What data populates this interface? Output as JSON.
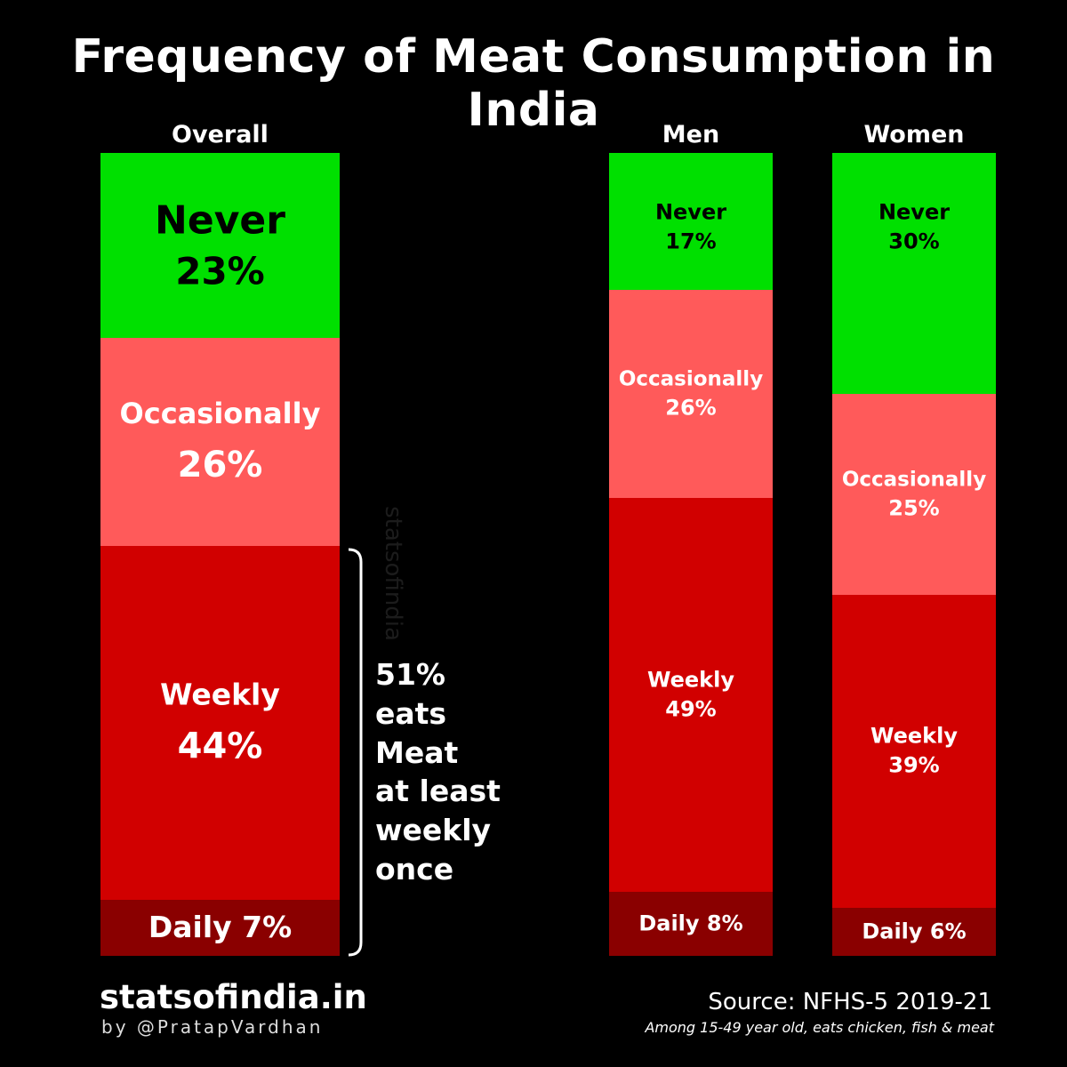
{
  "title": "Frequency of Meat Consumption in India",
  "colors": {
    "never": "#00e000",
    "occasionally": "#ff5a5a",
    "weekly": "#d10000",
    "daily": "#8a0000",
    "never_text": "#000000",
    "occasionally_text": "#ffffff",
    "weekly_text": "#ffffff",
    "daily_text": "#ffffff"
  },
  "chart_data": {
    "type": "bar",
    "stacked": true,
    "orientation": "vertical",
    "normalized": true,
    "categories": [
      "Overall",
      "Men",
      "Women"
    ],
    "series": [
      {
        "name": "Never",
        "values": [
          23,
          17,
          30
        ],
        "labels": [
          "23%",
          "17%",
          "30%"
        ]
      },
      {
        "name": "Occasionally",
        "values": [
          26,
          26,
          25
        ],
        "labels": [
          "26%",
          "26%",
          "25%"
        ]
      },
      {
        "name": "Weekly",
        "values": [
          44,
          49,
          39
        ],
        "labels": [
          "44%",
          "49%",
          "39%"
        ]
      },
      {
        "name": "Daily",
        "values": [
          7,
          8,
          6
        ],
        "labels": [
          "Daily 7%",
          "Daily 8%",
          "Daily 6%"
        ]
      }
    ],
    "annotation": [
      "51%",
      "eats",
      "Meat",
      "at least",
      "weekly",
      "once"
    ],
    "grid": false,
    "legend": "none"
  },
  "watermark": "statsofindia",
  "footer": {
    "brand": "statsofindia.in",
    "byline": "by @PratapVardhan",
    "source": "Source: NFHS-5 2019-21",
    "note": "Among 15-49 year old, eats chicken, fish & meat"
  }
}
